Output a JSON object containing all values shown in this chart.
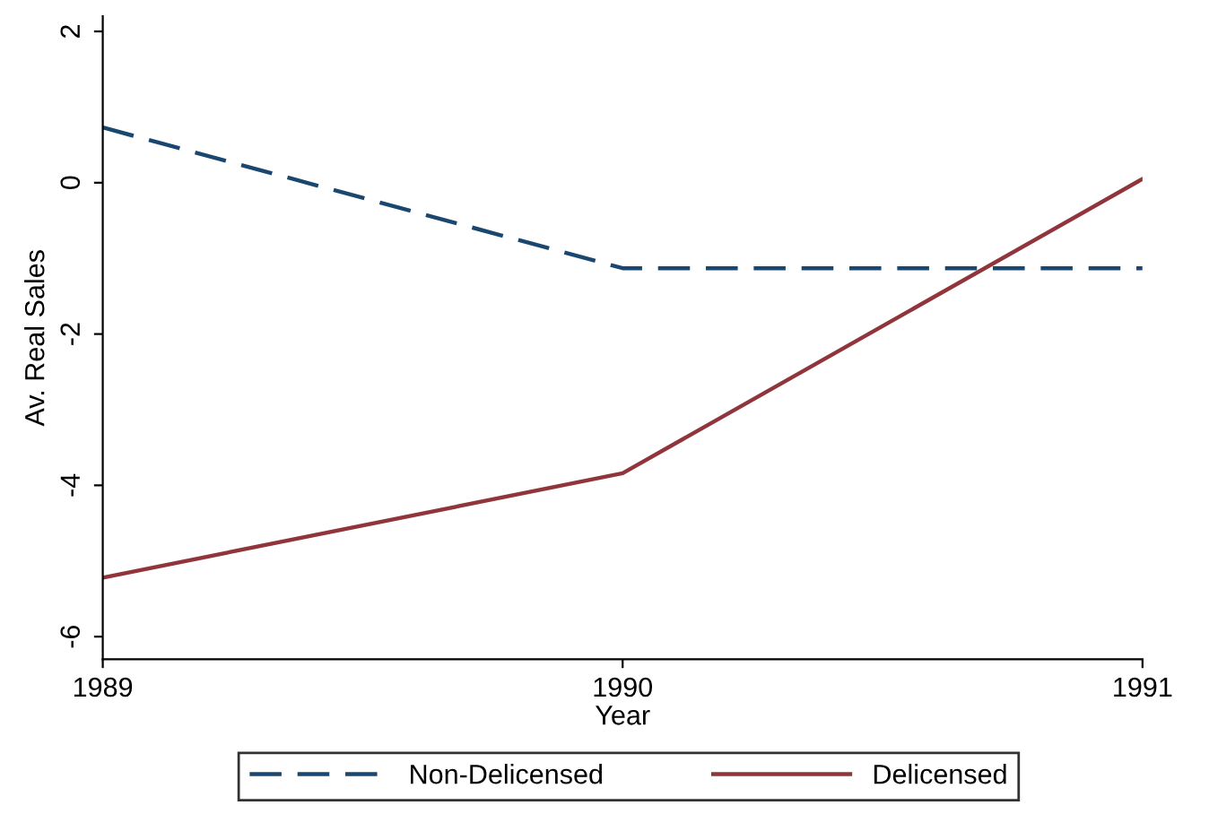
{
  "chart_data": {
    "type": "line",
    "xlabel": "Year",
    "ylabel": "Av. Real Sales",
    "x": [
      1989,
      1990,
      1991
    ],
    "series": [
      {
        "name": "Non-Delicensed",
        "color": "#1a476f",
        "values": [
          0.73,
          -1.13,
          -1.13
        ],
        "line_style": "dashed"
      },
      {
        "name": "Delicensed",
        "color": "#90353b",
        "values": [
          -5.22,
          -3.84,
          0.05
        ],
        "line_style": "solid"
      }
    ],
    "xlim": [
      1989,
      1991
    ],
    "xticks": [
      1989,
      1990,
      1991
    ],
    "ylim": [
      -6.3,
      2.2
    ],
    "yticks": [
      -6,
      -4,
      -2,
      0,
      2
    ],
    "grid": false,
    "legend": "bottom",
    "marker": "none"
  }
}
